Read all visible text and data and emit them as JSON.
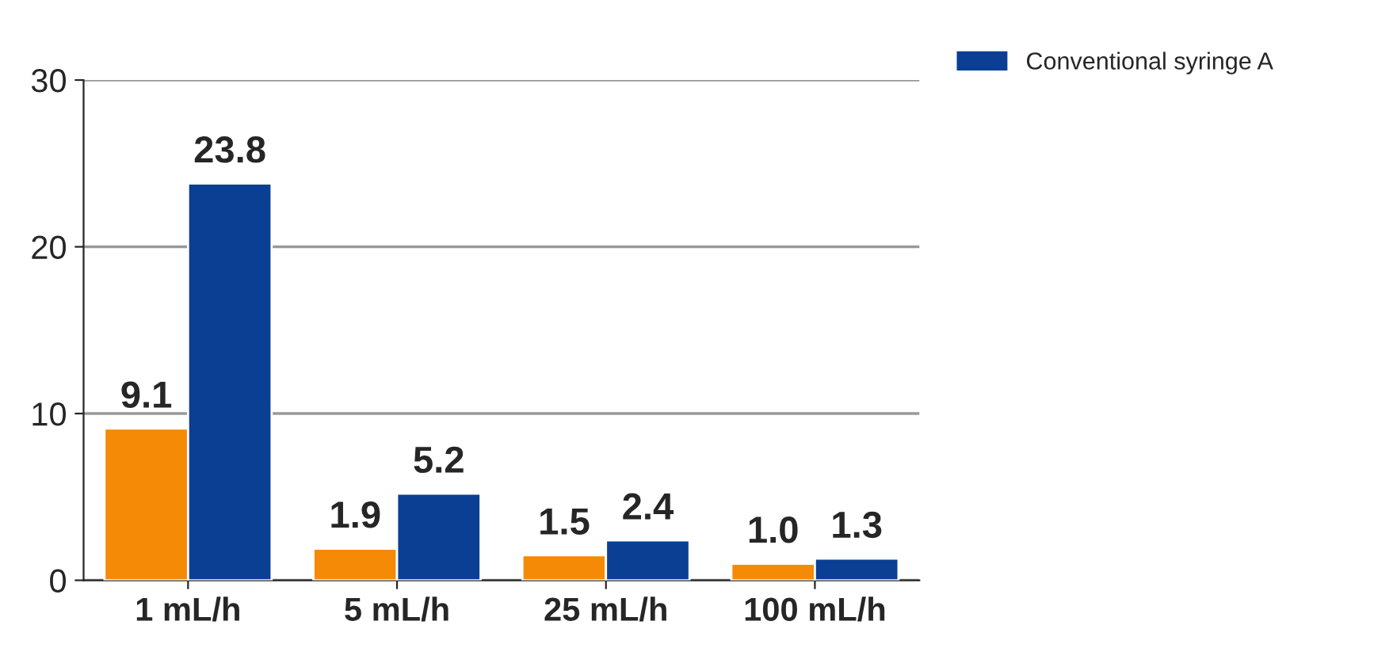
{
  "chart_data": {
    "type": "bar",
    "categories": [
      "1 mL/h",
      "5 mL/h",
      "25 mL/h",
      "100 mL/h"
    ],
    "series": [
      {
        "color": "#f58a07",
        "values": [
          9.1,
          1.9,
          1.5,
          1.0
        ],
        "value_labels": [
          "9.1",
          "1.9",
          "1.5",
          "1.0"
        ]
      },
      {
        "name": "Conventional syringe A",
        "color": "#0a3f94",
        "values": [
          23.8,
          5.2,
          2.4,
          1.3
        ],
        "value_labels": [
          "23.8",
          "5.2",
          "2.4",
          "1.3"
        ]
      }
    ],
    "ylim": [
      0,
      30
    ],
    "yticks": [
      0,
      10,
      20,
      30
    ],
    "grid": "y",
    "legend": "top right"
  }
}
